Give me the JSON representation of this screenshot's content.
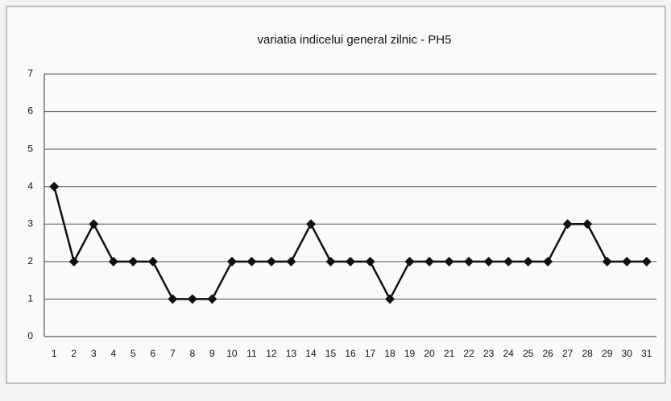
{
  "chart_data": {
    "type": "line",
    "title": "variatia indicelui general zilnic - PH5",
    "categories": [
      "1",
      "2",
      "3",
      "4",
      "5",
      "6",
      "7",
      "8",
      "9",
      "10",
      "11",
      "12",
      "13",
      "14",
      "15",
      "16",
      "17",
      "18",
      "19",
      "20",
      "21",
      "22",
      "23",
      "24",
      "25",
      "26",
      "27",
      "28",
      "29",
      "30",
      "31"
    ],
    "values": [
      4,
      2,
      3,
      2,
      2,
      2,
      1,
      1,
      1,
      2,
      2,
      2,
      2,
      3,
      2,
      2,
      2,
      1,
      2,
      2,
      2,
      2,
      2,
      2,
      2,
      2,
      3,
      3,
      2,
      2,
      2
    ],
    "color": "#111111",
    "ylim": [
      0,
      7
    ],
    "yticks": [
      0,
      1,
      2,
      3,
      4,
      5,
      6,
      7
    ],
    "grid": true
  }
}
